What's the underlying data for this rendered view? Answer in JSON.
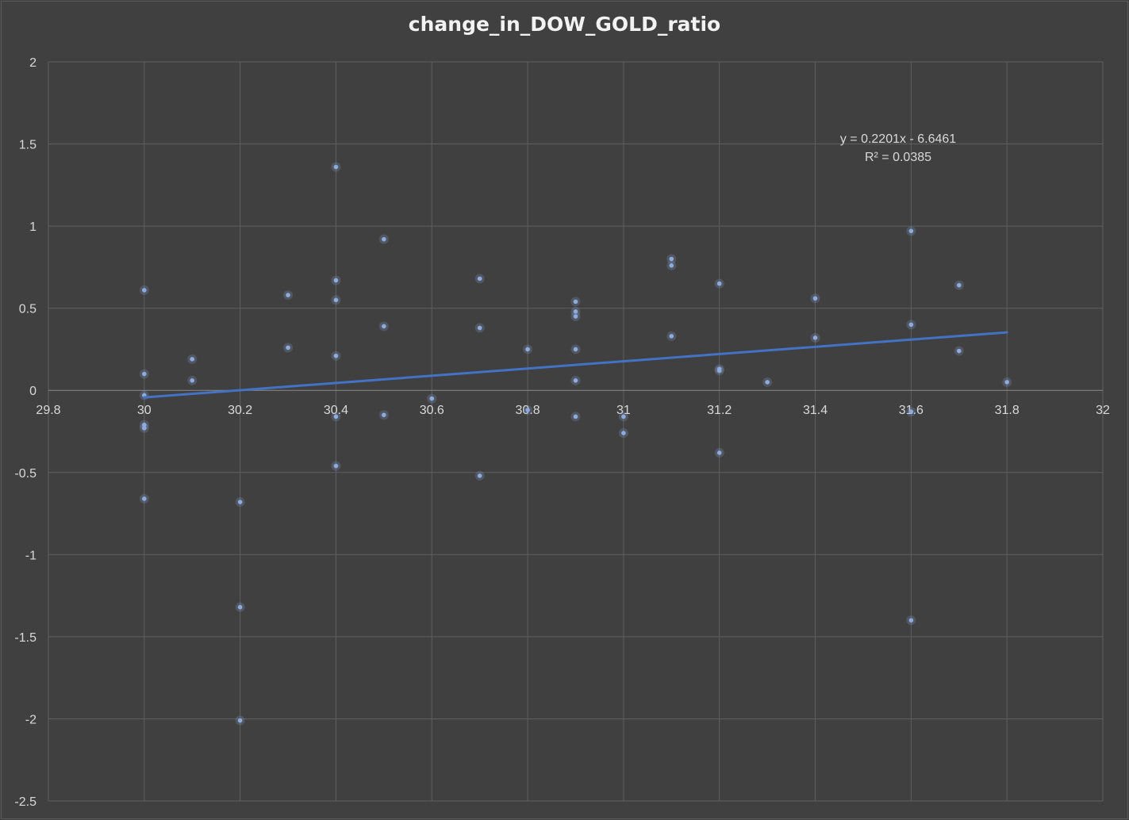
{
  "chart_data": {
    "type": "scatter",
    "title": "change_in_DOW_GOLD_ratio",
    "xlabel": "",
    "ylabel": "",
    "xlim": [
      29.8,
      32
    ],
    "ylim": [
      -2.5,
      2
    ],
    "x_ticks": [
      "29.8",
      "30",
      "30.2",
      "30.4",
      "30.6",
      "30.8",
      "31",
      "31.2",
      "31.4",
      "31.6",
      "31.8",
      "32"
    ],
    "y_ticks": [
      "2",
      "1.5",
      "1",
      "0.5",
      "0",
      "-0.5",
      "-1",
      "-1.5",
      "-2",
      "-2.5"
    ],
    "grid": true,
    "legend": "none",
    "series": [
      {
        "x": [
          30.0,
          30.0,
          30.0,
          30.0,
          30.0,
          30.0,
          30.1,
          30.1,
          30.2,
          30.2,
          30.2,
          30.3,
          30.3,
          30.4,
          30.4,
          30.4,
          30.4,
          30.4,
          30.4,
          30.5,
          30.5,
          30.5,
          30.6,
          30.7,
          30.7,
          30.7,
          30.8,
          30.8,
          30.9,
          30.9,
          30.9,
          30.9,
          30.9,
          30.9,
          31.0,
          31.0,
          31.1,
          31.1,
          31.1,
          31.2,
          31.2,
          31.2,
          31.2,
          31.3,
          31.4,
          31.4,
          31.6,
          31.6,
          31.6,
          31.6,
          31.7,
          31.7,
          31.8
        ],
        "y": [
          0.61,
          0.1,
          -0.03,
          -0.21,
          -0.23,
          -0.66,
          0.19,
          0.06,
          -0.68,
          -1.32,
          -2.01,
          0.58,
          0.26,
          1.36,
          0.67,
          0.55,
          0.21,
          -0.16,
          -0.46,
          0.92,
          0.39,
          -0.15,
          -0.05,
          0.68,
          0.38,
          -0.52,
          0.25,
          -0.12,
          0.54,
          0.48,
          0.45,
          0.25,
          0.06,
          -0.16,
          -0.16,
          -0.26,
          0.8,
          0.76,
          0.33,
          0.65,
          0.13,
          0.12,
          -0.38,
          0.05,
          0.56,
          0.32,
          0.97,
          0.4,
          -0.13,
          -1.4,
          0.64,
          0.24,
          0.05
        ],
        "color": "#8faadc"
      }
    ],
    "trendline": {
      "slope": 0.2201,
      "intercept": -6.6461,
      "x_range": [
        30.0,
        31.8
      ],
      "color": "#4472c4",
      "equation_label": "y = 0.2201x - 6.6461",
      "r2_label": "R² = 0.0385"
    }
  }
}
